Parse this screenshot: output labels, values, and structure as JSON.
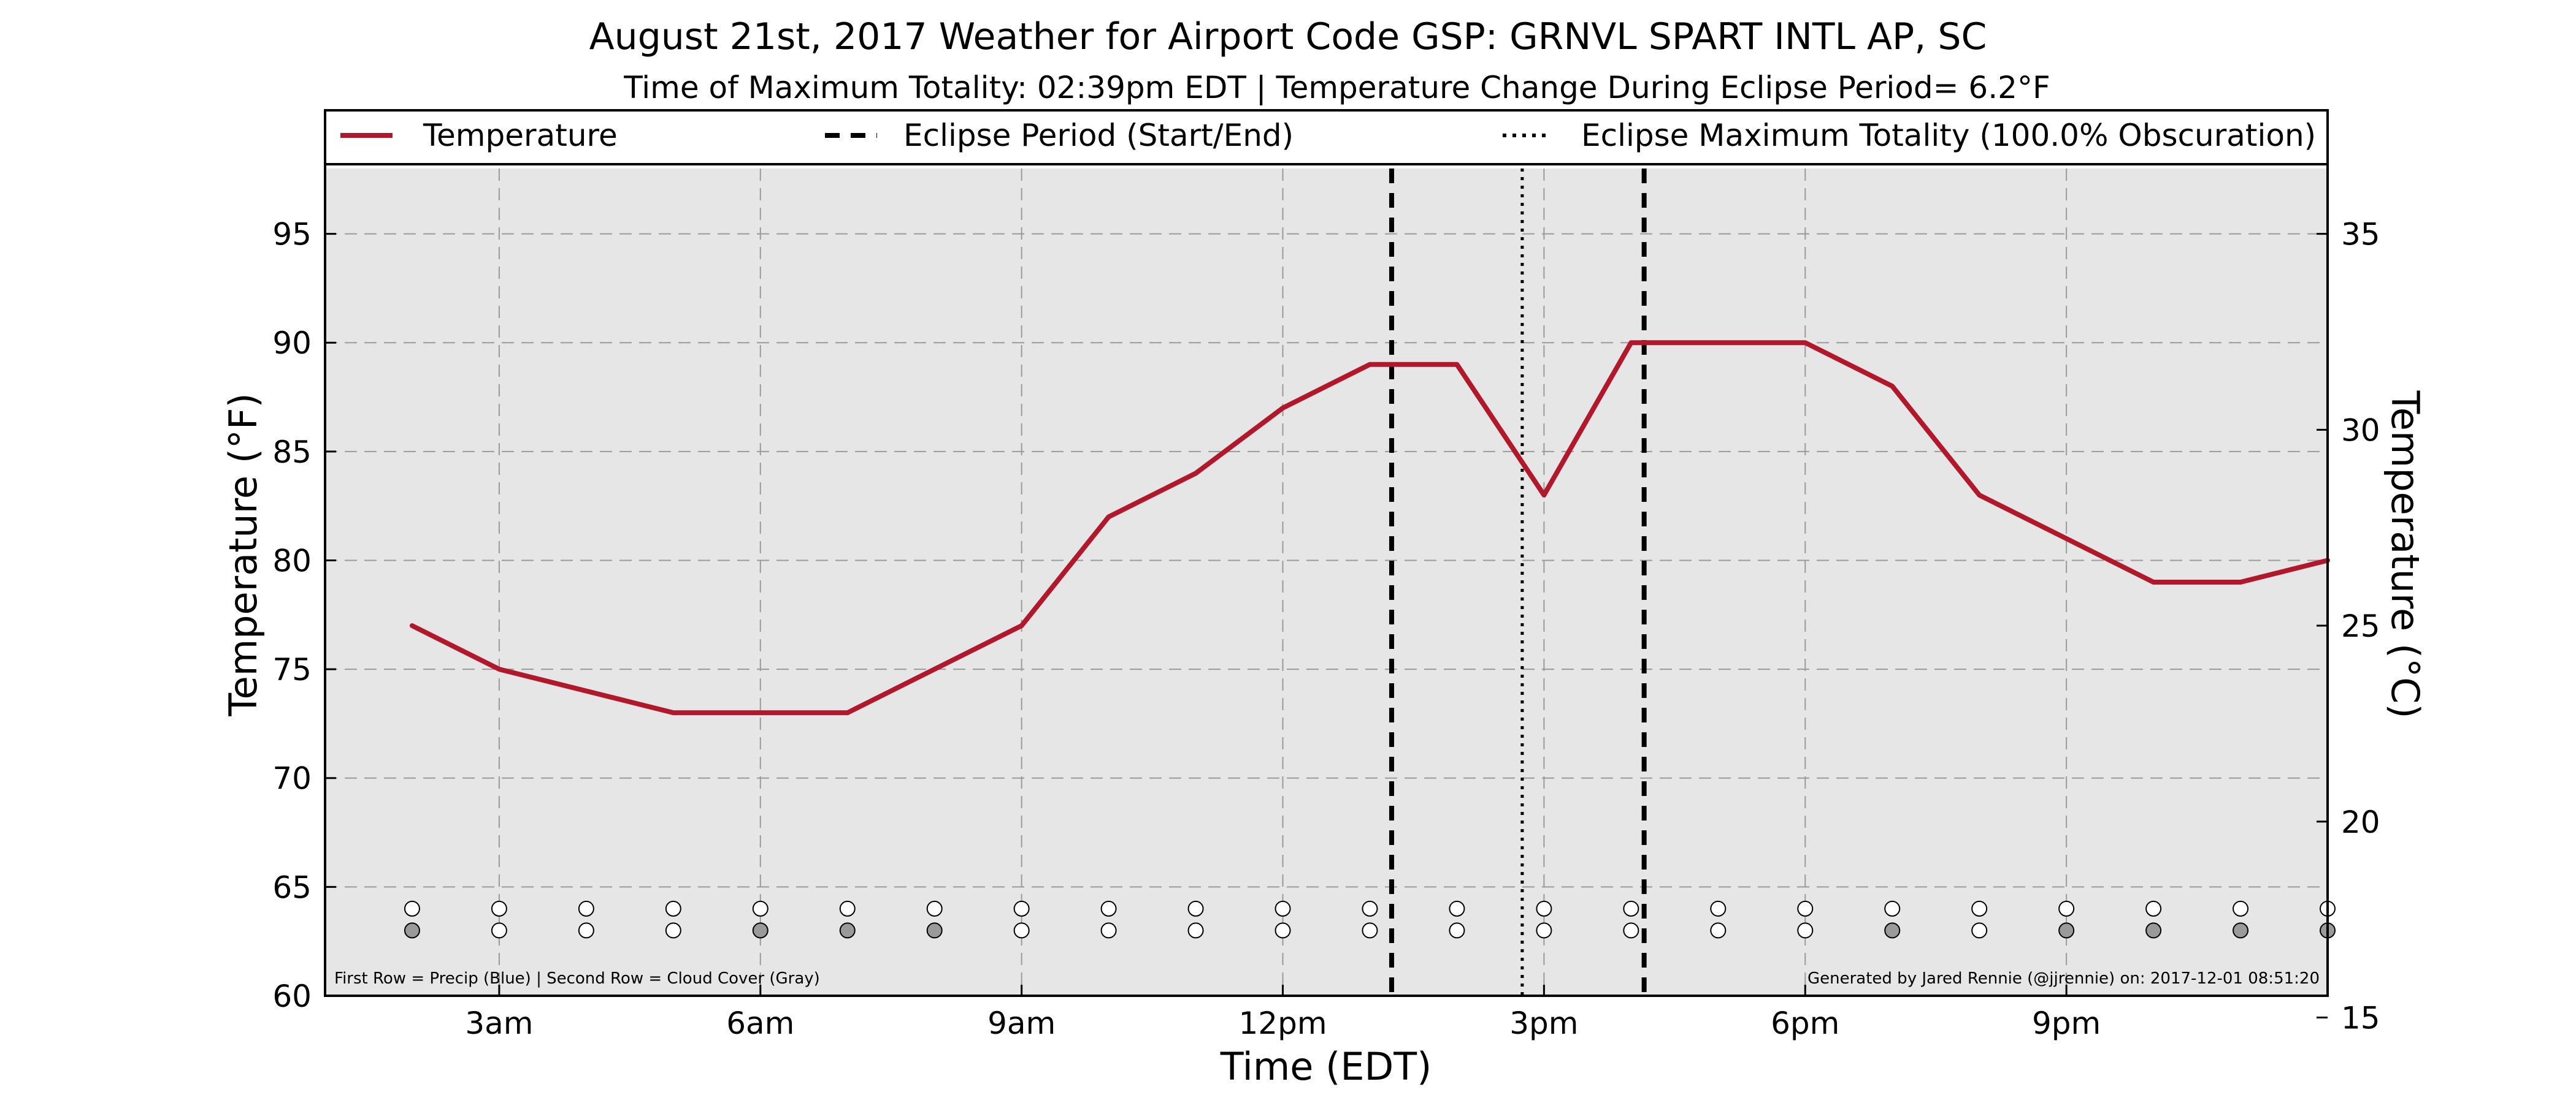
{
  "chart_data": {
    "type": "line",
    "title": "August 21st, 2017 Weather for Airport Code GSP: GRNVL SPART INTL AP, SC",
    "subtitle": "Time of Maximum Totality: 02:39pm EDT | Temperature Change During Eclipse Period= 6.2°F",
    "xlabel": "Time (EDT)",
    "ylabel": "Temperature (°F)",
    "ylabel_right": "Temperature (°C)",
    "xlim": [
      1,
      24
    ],
    "ylim": [
      60,
      98
    ],
    "ylim_right_c": [
      15.56,
      36.67
    ],
    "x_ticks": [
      {
        "x": 3,
        "label": "3am"
      },
      {
        "x": 6,
        "label": "6am"
      },
      {
        "x": 9,
        "label": "9am"
      },
      {
        "x": 12,
        "label": "12pm"
      },
      {
        "x": 15,
        "label": "3pm"
      },
      {
        "x": 18,
        "label": "6pm"
      },
      {
        "x": 21,
        "label": "9pm"
      }
    ],
    "y_ticks": [
      60,
      65,
      70,
      75,
      80,
      85,
      90,
      95
    ],
    "y_ticks_right": [
      15,
      20,
      25,
      30,
      35
    ],
    "grid": true,
    "legend": {
      "position": "top",
      "entries": [
        {
          "label": "Temperature",
          "style": "solid"
        },
        {
          "label": "Eclipse Period (Start/End)",
          "style": "dashed"
        },
        {
          "label": "Eclipse Maximum Totality (100.0% Obscuration)",
          "style": "dotted"
        }
      ]
    },
    "series": [
      {
        "name": "Temperature",
        "color": "#b2182b",
        "x": [
          2,
          3,
          4,
          5,
          6,
          7,
          8,
          9,
          10,
          11,
          12,
          13,
          14,
          15,
          16,
          17,
          18,
          19,
          20,
          21,
          22,
          23,
          24
        ],
        "values": [
          77,
          75,
          74,
          73,
          73,
          73,
          75,
          77,
          82,
          84,
          87,
          89,
          89,
          83,
          90,
          90,
          90,
          88,
          83,
          81,
          79,
          79,
          80
        ]
      }
    ],
    "eclipse_start_x": 13.25,
    "eclipse_end_x": 16.15,
    "eclipse_max_x": 14.75,
    "precip_y": 64,
    "cloud_y": 63,
    "precip_row": [
      0,
      0,
      0,
      0,
      0,
      0,
      0,
      0,
      0,
      0,
      0,
      0,
      0,
      0,
      0,
      0,
      0,
      0,
      0,
      0,
      0,
      0,
      0
    ],
    "cloud_row": [
      1,
      0,
      0,
      0,
      1,
      1,
      1,
      0,
      0,
      0,
      0,
      0,
      0,
      0,
      0,
      0,
      0,
      1,
      0,
      1,
      1,
      1,
      1
    ],
    "colors": {
      "line": "#b2182b",
      "plot_bg": "#e6e6e6",
      "cloud_fill": "#9a9a9a",
      "open_fill": "#ffffff"
    },
    "footnote_left": "First Row = Precip (Blue) | Second Row = Cloud Cover (Gray)",
    "footnote_right": "Generated by Jared Rennie (@jjrennie) on: 2017-12-01 08:51:20"
  }
}
